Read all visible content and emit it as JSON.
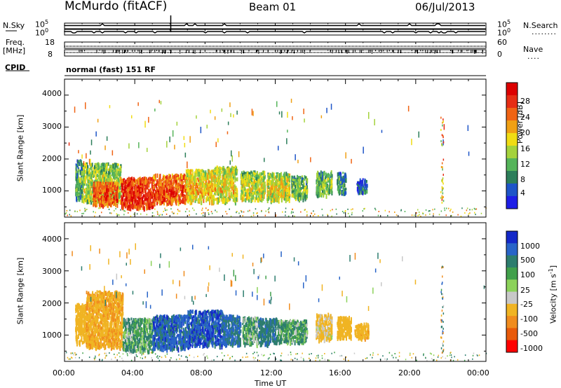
{
  "header": {
    "station": "McMurdo (fitACF)",
    "beam": "Beam 01",
    "date": "06/Jul/2013"
  },
  "top_panels": {
    "nsky_label": "N.Sky",
    "nsearch_label": "N.Search",
    "nsearch_dots": "........",
    "log_ticks": [
      "10^5",
      "10^0"
    ],
    "freq_label": "Freq.",
    "freq_unit": "[MHz]",
    "freq_ticks": [
      "18",
      "8"
    ],
    "nave_label": "Nave",
    "nave_dots": "....",
    "nave_ticks": [
      "60",
      "0"
    ],
    "cpid_label": "CPID",
    "cpid_value": "normal (fast) 151 RF"
  },
  "colors": {
    "power": [
      "#1e1ee6",
      "#1e55c8",
      "#2c7e5a",
      "#55b45a",
      "#a4d23c",
      "#f0dc14",
      "#f0a014",
      "#f06414",
      "#e62d14",
      "#dc0000"
    ],
    "velocity": [
      "#ff0000",
      "#e85a0a",
      "#f08c1e",
      "#f0b423",
      "#c8c8c8",
      "#8cd25a",
      "#41a04b",
      "#2d7d6e",
      "#2864c8",
      "#1428c8"
    ]
  },
  "chart_data": [
    {
      "type": "heatmap",
      "name": "power",
      "xlabel": "",
      "ylabel": "Slant Range [km]",
      "xlim": [
        0,
        24
      ],
      "ylim": [
        180,
        4500
      ],
      "yticks": [
        "1000",
        "2000",
        "3000",
        "4000"
      ],
      "colorbar": {
        "label": "Power [dB]",
        "ticks": [
          "4",
          "8",
          "12",
          "16",
          "20",
          "24",
          "28"
        ],
        "range": [
          0,
          30
        ]
      },
      "regions": [
        {
          "t": [
            0.6,
            1.0
          ],
          "r": [
            750,
            2000
          ],
          "value": 10
        },
        {
          "t": [
            1.0,
            3.2
          ],
          "r": [
            700,
            1900
          ],
          "value": 14
        },
        {
          "t": [
            1.6,
            3.0
          ],
          "r": [
            600,
            1300
          ],
          "value": 24
        },
        {
          "t": [
            3.2,
            5.0
          ],
          "r": [
            500,
            1450
          ],
          "value": 26
        },
        {
          "t": [
            5.0,
            6.9
          ],
          "r": [
            650,
            1550
          ],
          "value": 24
        },
        {
          "t": [
            6.9,
            8.5
          ],
          "r": [
            700,
            1700
          ],
          "value": 18
        },
        {
          "t": [
            8.5,
            9.8
          ],
          "r": [
            700,
            1800
          ],
          "value": 16
        },
        {
          "t": [
            10.0,
            11.4
          ],
          "r": [
            750,
            1650
          ],
          "value": 15
        },
        {
          "t": [
            11.5,
            12.8
          ],
          "r": [
            750,
            1600
          ],
          "value": 16
        },
        {
          "t": [
            12.9,
            13.8
          ],
          "r": [
            800,
            1500
          ],
          "value": 12
        },
        {
          "t": [
            14.3,
            15.2
          ],
          "r": [
            900,
            1650
          ],
          "value": 12
        },
        {
          "t": [
            15.5,
            16.0
          ],
          "r": [
            950,
            1600
          ],
          "value": 9
        },
        {
          "t": [
            16.6,
            17.2
          ],
          "r": [
            1000,
            1400
          ],
          "value": 6
        }
      ]
    },
    {
      "type": "heatmap",
      "name": "velocity",
      "xlabel": "Time UT",
      "ylabel": "Slant Range [km]",
      "xlim": [
        0,
        24
      ],
      "ylim": [
        180,
        4500
      ],
      "xticks": [
        "00:00",
        "04:00",
        "08:00",
        "12:00",
        "16:00",
        "20:00",
        "00:00"
      ],
      "yticks": [
        "1000",
        "2000",
        "3000",
        "4000"
      ],
      "colorbar": {
        "label": "Velocity [m s^-1]",
        "ticks": [
          "1000",
          "500",
          "100",
          "25",
          "-25",
          "-100",
          "-500",
          "-1000"
        ]
      },
      "regions": [
        {
          "t": [
            0.6,
            1.2
          ],
          "r": [
            800,
            2000
          ],
          "value": -300
        },
        {
          "t": [
            1.2,
            3.3
          ],
          "r": [
            650,
            2400
          ],
          "value": -400
        },
        {
          "t": [
            3.3,
            5.0
          ],
          "r": [
            550,
            1550
          ],
          "value": 80
        },
        {
          "t": [
            5.0,
            7.0
          ],
          "r": [
            600,
            1650
          ],
          "value": 700
        },
        {
          "t": [
            7.0,
            9.0
          ],
          "r": [
            700,
            1800
          ],
          "value": 800
        },
        {
          "t": [
            9.0,
            10.0
          ],
          "r": [
            750,
            1650
          ],
          "value": 600
        },
        {
          "t": [
            10.1,
            11.0
          ],
          "r": [
            750,
            1600
          ],
          "value": 60
        },
        {
          "t": [
            11.0,
            12.1
          ],
          "r": [
            750,
            1550
          ],
          "value": 400
        },
        {
          "t": [
            12.1,
            13.8
          ],
          "r": [
            800,
            1500
          ],
          "value": 80
        },
        {
          "t": [
            14.3,
            15.2
          ],
          "r": [
            900,
            1700
          ],
          "value": -150
        },
        {
          "t": [
            15.5,
            16.3
          ],
          "r": [
            950,
            1600
          ],
          "value": -300
        },
        {
          "t": [
            16.5,
            17.3
          ],
          "r": [
            950,
            1400
          ],
          "value": -350
        }
      ]
    }
  ]
}
